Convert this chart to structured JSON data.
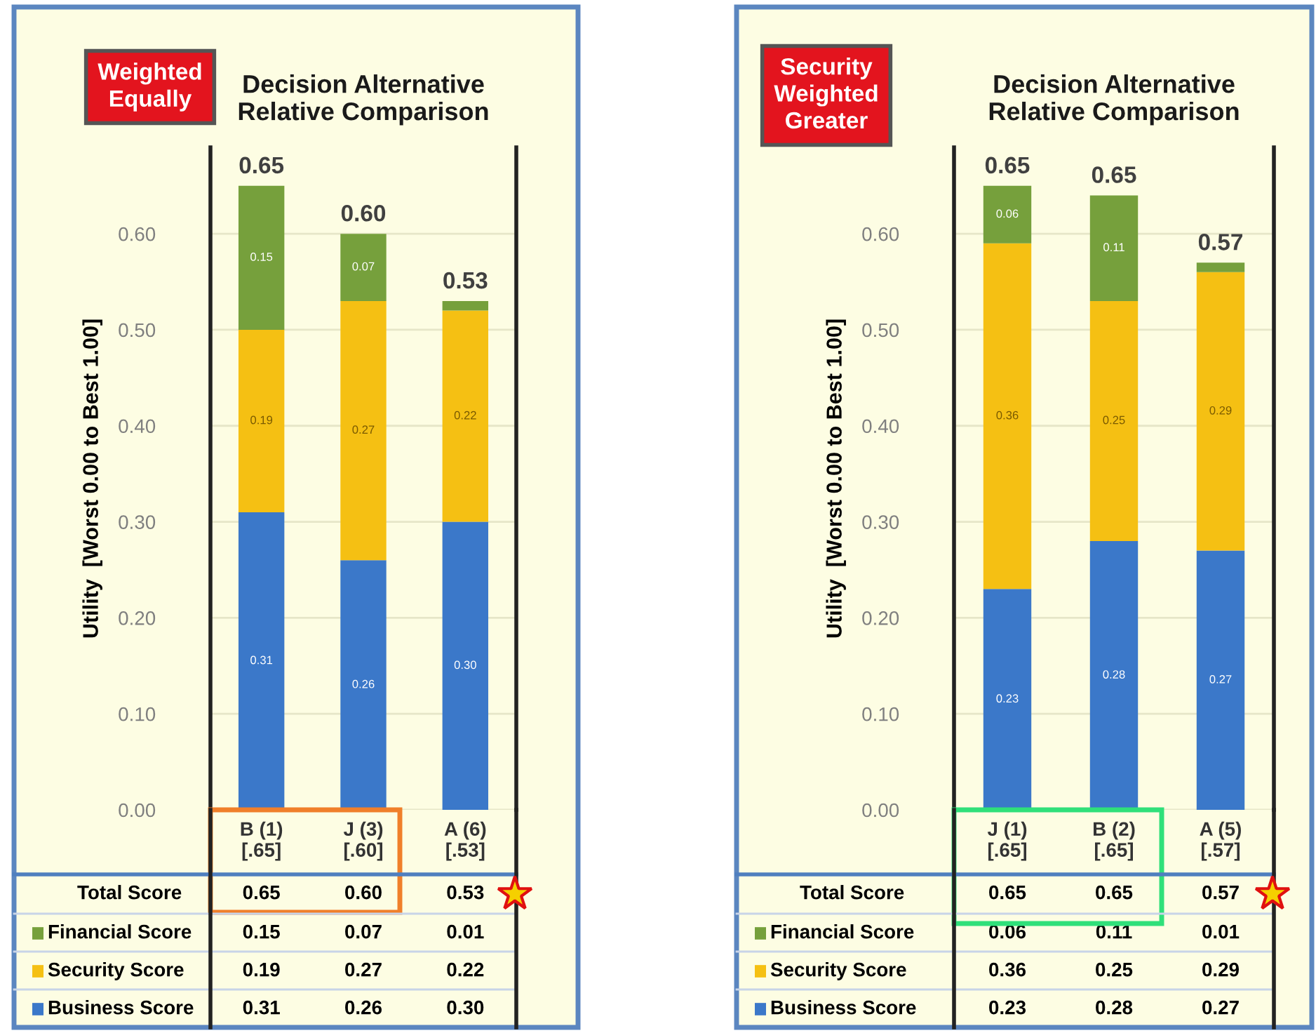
{
  "chart_data": [
    {
      "type": "bar",
      "stacked": true,
      "title": "Decision Alternative\nRelative Comparison",
      "ylabel": "Utility  [Worst 0.00 to Best 1.00]",
      "categories": [
        "B (1)\n[.65]",
        "J (3)\n[.60]",
        "A (6)\n[.53]"
      ],
      "series": [
        {
          "name": "Business Score",
          "color": "#3b78c9",
          "values": [
            0.31,
            0.26,
            0.3
          ],
          "value_labels": [
            "0.31",
            "0.26",
            "0.30"
          ]
        },
        {
          "name": "Security Score",
          "color": "#f5c013",
          "values": [
            0.19,
            0.27,
            0.22
          ],
          "value_labels": [
            "0.19",
            "0.27",
            "0.22"
          ]
        },
        {
          "name": "Financial Score",
          "color": "#76a03c",
          "values": [
            0.15,
            0.07,
            0.01
          ],
          "value_labels": [
            "0.15",
            "0.07",
            "0.01"
          ]
        }
      ],
      "totals": [
        "0.65",
        "0.60",
        "0.53"
      ],
      "ylim": [
        0,
        0.69
      ],
      "yticks": [
        {
          "value": 0,
          "label": "0.00"
        },
        {
          "value": 0.1,
          "label": "0.10"
        },
        {
          "value": 0.2,
          "label": "0.20"
        },
        {
          "value": 0.3,
          "label": "0.30"
        },
        {
          "value": 0.4,
          "label": "0.40"
        },
        {
          "value": 0.5,
          "label": "0.50"
        },
        {
          "value": 0.6,
          "label": "0.60"
        }
      ],
      "grid": "y",
      "legend": "bottom",
      "annotations": [
        "Weighted\nEqually",
        "Total Score"
      ]
    },
    {
      "type": "bar",
      "stacked": true,
      "title": "Decision Alternative\nRelative Comparison",
      "ylabel": "Utility  [Worst 0.00 to Best 1.00]",
      "categories": [
        "J (1)\n[.65]",
        "B (2)\n[.65]",
        "A (5)\n[.57]"
      ],
      "series": [
        {
          "name": "Business Score",
          "color": "#3b78c9",
          "values": [
            0.23,
            0.28,
            0.27
          ],
          "value_labels": [
            "0.23",
            "0.28",
            "0.27"
          ]
        },
        {
          "name": "Security Score",
          "color": "#f5c013",
          "values": [
            0.36,
            0.25,
            0.29
          ],
          "value_labels": [
            "0.36",
            "0.25",
            "0.29"
          ]
        },
        {
          "name": "Financial Score",
          "color": "#76a03c",
          "values": [
            0.06,
            0.11,
            0.01
          ],
          "value_labels": [
            "0.06",
            "0.11",
            "0.01"
          ]
        }
      ],
      "totals": [
        "0.65",
        "0.65",
        "0.57"
      ],
      "ylim": [
        0,
        0.69
      ],
      "yticks": [
        {
          "value": 0,
          "label": "0.00"
        },
        {
          "value": 0.1,
          "label": "0.10"
        },
        {
          "value": 0.2,
          "label": "0.20"
        },
        {
          "value": 0.3,
          "label": "0.30"
        },
        {
          "value": 0.4,
          "label": "0.40"
        },
        {
          "value": 0.5,
          "label": "0.50"
        },
        {
          "value": 0.6,
          "label": "0.60"
        }
      ],
      "grid": "y",
      "legend": "bottom",
      "annotations": [
        "Security\nWeighted\nGreater",
        "Total Score"
      ]
    }
  ]
}
